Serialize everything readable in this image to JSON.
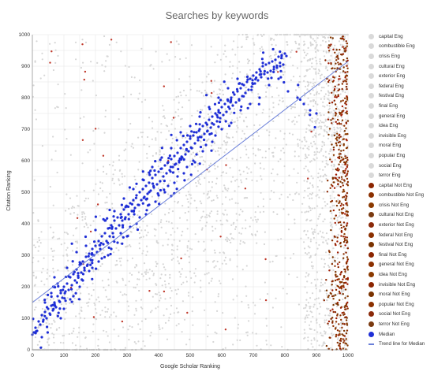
{
  "chart_data": {
    "type": "scatter",
    "title": "Searches by keywords",
    "xlabel": "Google Scholar Ranking",
    "ylabel": "Citation Ranking",
    "xlim": [
      0,
      1000
    ],
    "ylim": [
      0,
      1000
    ],
    "x_ticks": [
      "0",
      "100",
      "200",
      "300",
      "400",
      "500",
      "600",
      "700",
      "800",
      "900",
      "1000"
    ],
    "y_ticks": [
      "0",
      "100",
      "200",
      "300",
      "400",
      "500",
      "600",
      "700",
      "800",
      "900",
      "1000"
    ],
    "grid": true,
    "legend_position": "right",
    "legend": [
      {
        "label": "capital Eng",
        "color": "#d9d9d9",
        "kind": "eng"
      },
      {
        "label": "combustible Eng",
        "color": "#d9d9d9",
        "kind": "eng"
      },
      {
        "label": "crisis Eng",
        "color": "#d9d9d9",
        "kind": "eng"
      },
      {
        "label": "cultural Eng",
        "color": "#d9d9d9",
        "kind": "eng"
      },
      {
        "label": "exterior Eng",
        "color": "#d9d9d9",
        "kind": "eng"
      },
      {
        "label": "federal Eng",
        "color": "#d9d9d9",
        "kind": "eng"
      },
      {
        "label": "festival Eng",
        "color": "#d9d9d9",
        "kind": "eng"
      },
      {
        "label": "final Eng",
        "color": "#d9d9d9",
        "kind": "eng"
      },
      {
        "label": "general Eng",
        "color": "#d9d9d9",
        "kind": "eng"
      },
      {
        "label": "idea Eng",
        "color": "#d9d9d9",
        "kind": "eng"
      },
      {
        "label": "invisible Eng",
        "color": "#d9d9d9",
        "kind": "eng"
      },
      {
        "label": "moral Eng",
        "color": "#d9d9d9",
        "kind": "eng"
      },
      {
        "label": "popular Eng",
        "color": "#d9d9d9",
        "kind": "eng"
      },
      {
        "label": "social Eng",
        "color": "#d9d9d9",
        "kind": "eng"
      },
      {
        "label": "terror Eng",
        "color": "#d9d9d9",
        "kind": "eng"
      },
      {
        "label": "capital Not Eng",
        "color": "#8b2500",
        "kind": "noteng"
      },
      {
        "label": "combustible Not Eng",
        "color": "#8b3000",
        "kind": "noteng"
      },
      {
        "label": "crisis Not Eng",
        "color": "#8b3a00",
        "kind": "noteng"
      },
      {
        "label": "cultural Not Eng",
        "color": "#7a3a10",
        "kind": "noteng"
      },
      {
        "label": "exterior Not Eng",
        "color": "#8b2a0a",
        "kind": "noteng"
      },
      {
        "label": "federal Not Eng",
        "color": "#8b3000",
        "kind": "noteng"
      },
      {
        "label": "festival Not Eng",
        "color": "#7a3300",
        "kind": "noteng"
      },
      {
        "label": "final Not Eng",
        "color": "#8b2500",
        "kind": "noteng"
      },
      {
        "label": "general Not Eng",
        "color": "#8b3000",
        "kind": "noteng"
      },
      {
        "label": "idea Not Eng",
        "color": "#8b3a00",
        "kind": "noteng"
      },
      {
        "label": "invisible Not Eng",
        "color": "#8b2500",
        "kind": "noteng"
      },
      {
        "label": "moral Not Eng",
        "color": "#7a3300",
        "kind": "noteng"
      },
      {
        "label": "popular Not Eng",
        "color": "#8b3000",
        "kind": "noteng"
      },
      {
        "label": "social Not Eng",
        "color": "#8b2a0a",
        "kind": "noteng"
      },
      {
        "label": "terror Not Eng",
        "color": "#7a3a10",
        "kind": "noteng"
      },
      {
        "label": "Median",
        "color": "#1f2fd6",
        "kind": "median"
      },
      {
        "label": "Trend line for Median",
        "color": "#6a7fd9",
        "kind": "trend"
      }
    ],
    "series": [
      {
        "name": "Median",
        "color": "#1f2fd6",
        "points": [
          [
            5,
            55
          ],
          [
            10,
            70
          ],
          [
            15,
            60
          ],
          [
            20,
            90
          ],
          [
            25,
            80
          ],
          [
            30,
            110
          ],
          [
            35,
            95
          ],
          [
            40,
            120
          ],
          [
            45,
            100
          ],
          [
            50,
            130
          ],
          [
            55,
            115
          ],
          [
            60,
            140
          ],
          [
            65,
            125
          ],
          [
            70,
            150
          ],
          [
            75,
            135
          ],
          [
            80,
            170
          ],
          [
            85,
            155
          ],
          [
            90,
            180
          ],
          [
            95,
            165
          ],
          [
            100,
            200
          ],
          [
            105,
            185
          ],
          [
            110,
            210
          ],
          [
            115,
            190
          ],
          [
            120,
            230
          ],
          [
            125,
            205
          ],
          [
            130,
            240
          ],
          [
            135,
            220
          ],
          [
            140,
            255
          ],
          [
            145,
            235
          ],
          [
            150,
            270
          ],
          [
            155,
            245
          ],
          [
            160,
            280
          ],
          [
            165,
            260
          ],
          [
            170,
            295
          ],
          [
            175,
            270
          ],
          [
            180,
            305
          ],
          [
            185,
            285
          ],
          [
            190,
            320
          ],
          [
            195,
            300
          ],
          [
            200,
            330
          ],
          [
            205,
            310
          ],
          [
            210,
            345
          ],
          [
            215,
            320
          ],
          [
            220,
            360
          ],
          [
            225,
            335
          ],
          [
            230,
            370
          ],
          [
            235,
            345
          ],
          [
            240,
            385
          ],
          [
            245,
            360
          ],
          [
            250,
            395
          ],
          [
            255,
            370
          ],
          [
            260,
            410
          ],
          [
            265,
            385
          ],
          [
            270,
            420
          ],
          [
            275,
            395
          ],
          [
            280,
            430
          ],
          [
            285,
            410
          ],
          [
            290,
            445
          ],
          [
            295,
            420
          ],
          [
            300,
            455
          ],
          [
            305,
            430
          ],
          [
            310,
            465
          ],
          [
            315,
            440
          ],
          [
            320,
            475
          ],
          [
            325,
            450
          ],
          [
            330,
            490
          ],
          [
            335,
            460
          ],
          [
            340,
            500
          ],
          [
            345,
            475
          ],
          [
            350,
            510
          ],
          [
            355,
            485
          ],
          [
            360,
            520
          ],
          [
            365,
            495
          ],
          [
            370,
            530
          ],
          [
            375,
            505
          ],
          [
            380,
            545
          ],
          [
            385,
            515
          ],
          [
            390,
            555
          ],
          [
            395,
            525
          ],
          [
            400,
            565
          ],
          [
            405,
            535
          ],
          [
            410,
            575
          ],
          [
            415,
            550
          ],
          [
            420,
            585
          ],
          [
            425,
            560
          ],
          [
            430,
            595
          ],
          [
            435,
            570
          ],
          [
            440,
            605
          ],
          [
            445,
            580
          ],
          [
            450,
            615
          ],
          [
            455,
            590
          ],
          [
            460,
            625
          ],
          [
            465,
            600
          ],
          [
            470,
            640
          ],
          [
            475,
            610
          ],
          [
            480,
            650
          ],
          [
            485,
            620
          ],
          [
            490,
            660
          ],
          [
            495,
            630
          ],
          [
            500,
            670
          ],
          [
            505,
            640
          ],
          [
            510,
            680
          ],
          [
            515,
            655
          ],
          [
            520,
            690
          ],
          [
            525,
            665
          ],
          [
            530,
            700
          ],
          [
            535,
            675
          ],
          [
            540,
            710
          ],
          [
            545,
            685
          ],
          [
            550,
            720
          ],
          [
            555,
            695
          ],
          [
            560,
            730
          ],
          [
            565,
            705
          ],
          [
            570,
            740
          ],
          [
            575,
            715
          ],
          [
            580,
            750
          ],
          [
            585,
            725
          ],
          [
            590,
            760
          ],
          [
            595,
            735
          ],
          [
            600,
            770
          ],
          [
            605,
            745
          ],
          [
            610,
            780
          ],
          [
            615,
            755
          ],
          [
            620,
            790
          ],
          [
            625,
            765
          ],
          [
            630,
            800
          ],
          [
            635,
            775
          ],
          [
            640,
            810
          ],
          [
            645,
            785
          ],
          [
            650,
            820
          ],
          [
            655,
            795
          ],
          [
            660,
            830
          ],
          [
            665,
            805
          ],
          [
            670,
            840
          ],
          [
            675,
            815
          ],
          [
            680,
            850
          ],
          [
            685,
            825
          ],
          [
            690,
            860
          ],
          [
            695,
            835
          ],
          [
            700,
            870
          ],
          [
            705,
            845
          ],
          [
            710,
            880
          ],
          [
            715,
            855
          ],
          [
            720,
            890
          ],
          [
            725,
            865
          ],
          [
            730,
            900
          ],
          [
            735,
            875
          ],
          [
            740,
            905
          ],
          [
            745,
            880
          ],
          [
            750,
            910
          ],
          [
            755,
            885
          ],
          [
            760,
            915
          ],
          [
            765,
            890
          ],
          [
            770,
            920
          ],
          [
            775,
            895
          ],
          [
            780,
            930
          ],
          [
            785,
            900
          ],
          [
            790,
            935
          ],
          [
            795,
            905
          ],
          [
            800,
            940
          ],
          [
            60,
            180
          ],
          [
            90,
            100
          ],
          [
            120,
            160
          ],
          [
            150,
            200
          ],
          [
            180,
            250
          ],
          [
            210,
            280
          ],
          [
            240,
            300
          ],
          [
            270,
            340
          ],
          [
            300,
            360
          ],
          [
            330,
            400
          ],
          [
            360,
            430
          ],
          [
            390,
            470
          ],
          [
            420,
            500
          ],
          [
            450,
            530
          ],
          [
            480,
            560
          ],
          [
            510,
            600
          ],
          [
            540,
            630
          ],
          [
            570,
            660
          ],
          [
            600,
            700
          ],
          [
            630,
            720
          ],
          [
            660,
            760
          ],
          [
            690,
            780
          ],
          [
            720,
            800
          ],
          [
            750,
            840
          ],
          [
            780,
            860
          ],
          [
            810,
            820
          ],
          [
            840,
            800
          ],
          [
            860,
            780
          ],
          [
            880,
            760
          ],
          [
            900,
            750
          ],
          [
            70,
            230
          ],
          [
            110,
            260
          ],
          [
            140,
            310
          ],
          [
            170,
            330
          ],
          [
            200,
            380
          ],
          [
            230,
            410
          ],
          [
            260,
            440
          ],
          [
            290,
            480
          ],
          [
            320,
            510
          ],
          [
            350,
            540
          ],
          [
            380,
            580
          ],
          [
            410,
            610
          ],
          [
            440,
            640
          ],
          [
            470,
            690
          ],
          [
            500,
            710
          ],
          [
            530,
            740
          ],
          [
            560,
            770
          ],
          [
            590,
            800
          ],
          [
            620,
            830
          ],
          [
            650,
            860
          ],
          [
            30,
            40
          ],
          [
            40,
            150
          ],
          [
            80,
            210
          ],
          [
            100,
            130
          ],
          [
            130,
            170
          ],
          [
            160,
            220
          ],
          [
            190,
            260
          ],
          [
            220,
            290
          ],
          [
            250,
            320
          ],
          [
            280,
            370
          ],
          [
            310,
            390
          ],
          [
            340,
            420
          ],
          [
            370,
            460
          ],
          [
            400,
            490
          ],
          [
            430,
            520
          ],
          [
            460,
            550
          ],
          [
            490,
            580
          ],
          [
            520,
            620
          ],
          [
            550,
            650
          ],
          [
            580,
            680
          ]
        ]
      },
      {
        "name": "Trend line for Median",
        "color": "#6a7fd9",
        "line": [
          [
            0,
            150
          ],
          [
            1000,
            915
          ]
        ]
      }
    ]
  }
}
